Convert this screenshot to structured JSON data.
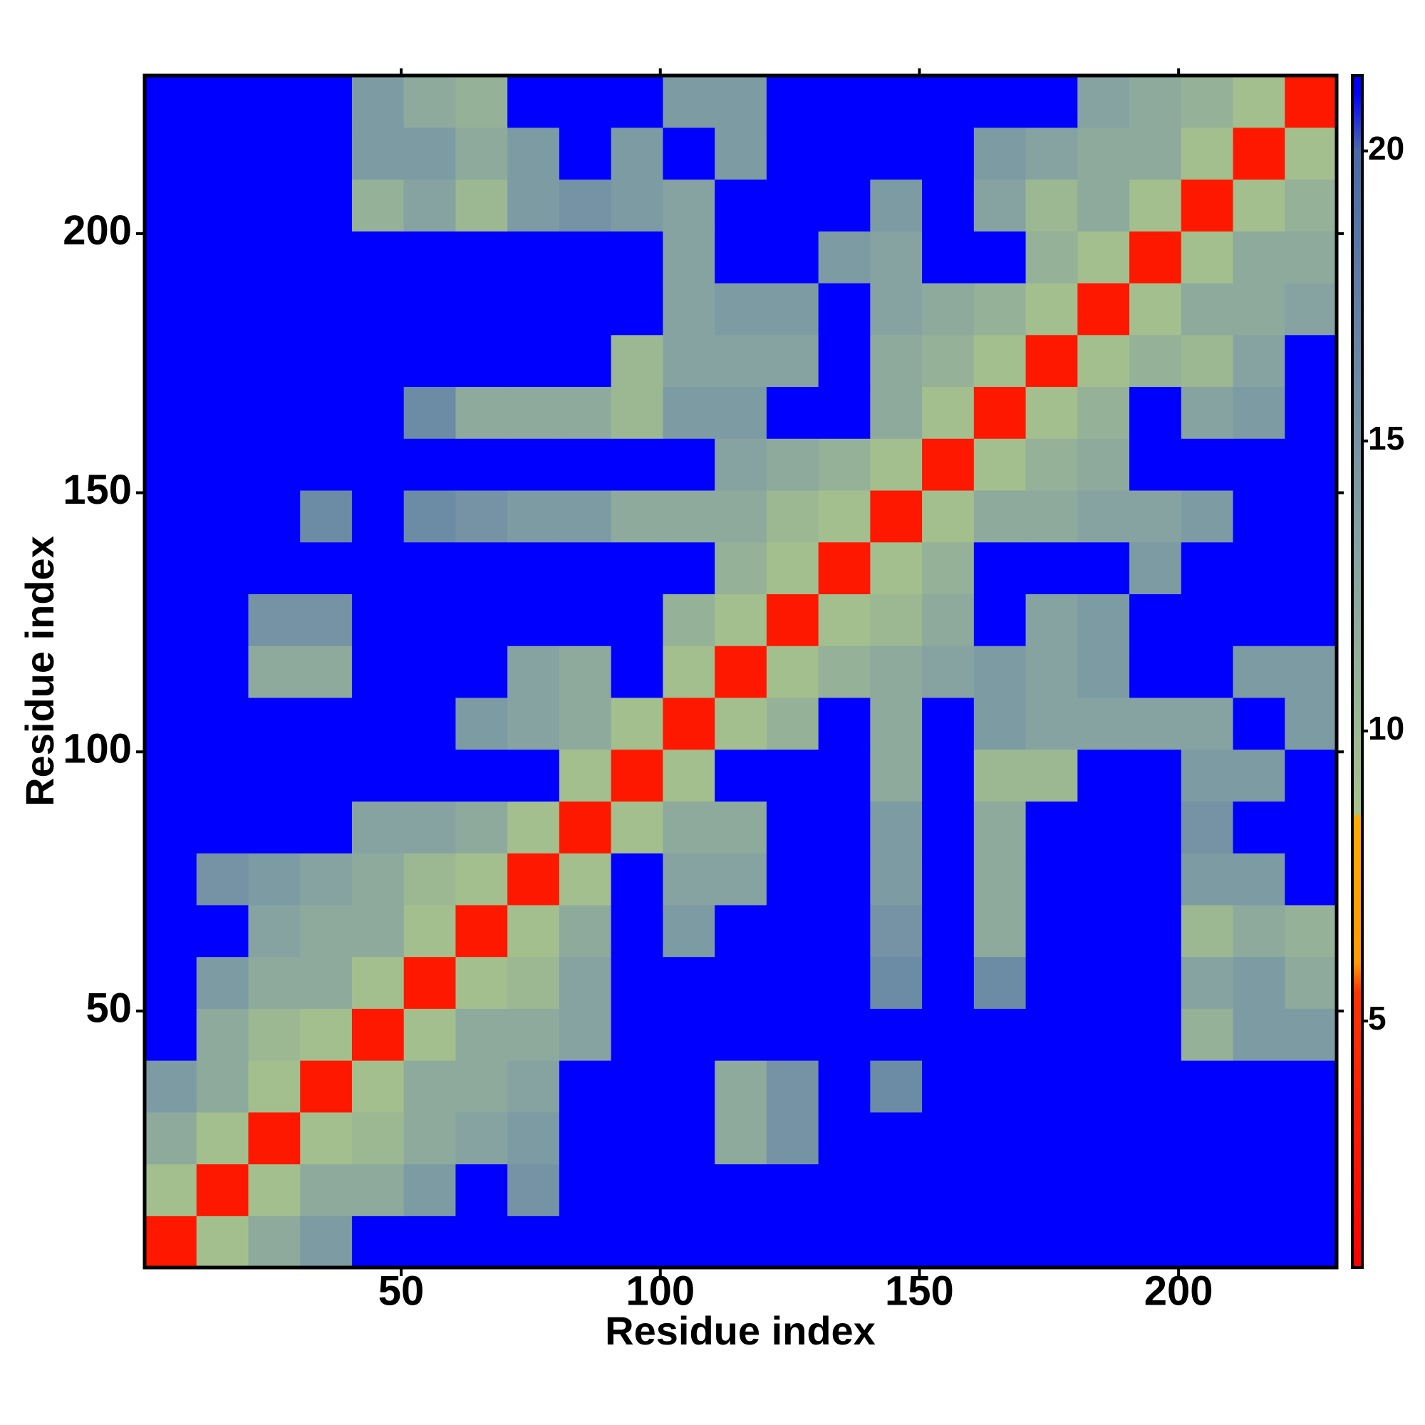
{
  "chart_data": {
    "type": "heatmap",
    "x_label": "Residue index",
    "y_label": "Residue index",
    "xbins": [
      0.5,
      10.5,
      20.5,
      30.5,
      40.5,
      50.5,
      60.5,
      70.5,
      80.5,
      90.5,
      100.5,
      110.5,
      120.5,
      130.5,
      140.5,
      150.5,
      160.5,
      170.5,
      180.5,
      190.5,
      200.5,
      210.5,
      220.5,
      230.5
    ],
    "ybins": [
      0.5,
      10.5,
      20.5,
      30.5,
      40.5,
      50.5,
      60.5,
      70.5,
      80.5,
      90.5,
      100.5,
      110.5,
      120.5,
      130.5,
      140.5,
      150.5,
      160.5,
      170.5,
      180.5,
      190.5,
      200.5,
      210.5,
      220.5,
      230.5
    ],
    "xlim": [
      0.5,
      230.5
    ],
    "ylim": [
      0.5,
      230.5
    ],
    "xticks": [
      50,
      100,
      150,
      200
    ],
    "yticks": [
      50,
      100,
      150,
      200
    ],
    "clim": [
      0.75,
      21.3
    ],
    "cticks": [
      5,
      10,
      15,
      20
    ],
    "colorscale": [
      [
        0.75,
        "#ff0000"
      ],
      [
        5.5,
        "#ff3300"
      ],
      [
        6,
        "#ff9900"
      ],
      [
        8.5,
        "#ffaa00"
      ],
      [
        8.6,
        "#a6c28c"
      ],
      [
        13,
        "#86a3a2"
      ],
      [
        20,
        "#4a6aa8"
      ],
      [
        21,
        "#0000ff"
      ]
    ],
    "values": [
      [
        3,
        9,
        12,
        14,
        21,
        21,
        21,
        21,
        21,
        21,
        21,
        21,
        21,
        21,
        21,
        21,
        21,
        21,
        21,
        21,
        21,
        21,
        21
      ],
      [
        9,
        3,
        9,
        12,
        12,
        14,
        21,
        15,
        21,
        21,
        21,
        21,
        21,
        21,
        21,
        21,
        21,
        21,
        21,
        21,
        21,
        21,
        21
      ],
      [
        12,
        9,
        3,
        9,
        10,
        12,
        13,
        14,
        21,
        21,
        21,
        12,
        15,
        21,
        21,
        21,
        21,
        21,
        21,
        21,
        21,
        21,
        21
      ],
      [
        14,
        12,
        9,
        3,
        9,
        12,
        12,
        13,
        21,
        21,
        21,
        12,
        15,
        21,
        16,
        21,
        21,
        21,
        21,
        21,
        21,
        21,
        21
      ],
      [
        21,
        12,
        10,
        9,
        3,
        9,
        12,
        12,
        13,
        21,
        21,
        21,
        21,
        21,
        21,
        21,
        21,
        21,
        21,
        21,
        11,
        14,
        14
      ],
      [
        21,
        14,
        12,
        12,
        9,
        3,
        9,
        10,
        13,
        21,
        21,
        21,
        21,
        21,
        16,
        21,
        16,
        21,
        21,
        21,
        13,
        14,
        12
      ],
      [
        21,
        21,
        13,
        12,
        12,
        9,
        3,
        9,
        12,
        21,
        14,
        21,
        21,
        21,
        15,
        21,
        12,
        21,
        21,
        21,
        10,
        12,
        11
      ],
      [
        21,
        15,
        14,
        13,
        12,
        10,
        9,
        3,
        9,
        21,
        13,
        13,
        21,
        21,
        14,
        21,
        12,
        21,
        21,
        21,
        14,
        14,
        21
      ],
      [
        21,
        21,
        21,
        21,
        13,
        13,
        12,
        9,
        3,
        9,
        12,
        12,
        21,
        21,
        14,
        21,
        12,
        21,
        21,
        21,
        15,
        21,
        21
      ],
      [
        21,
        21,
        21,
        21,
        21,
        21,
        21,
        21,
        9,
        3,
        9,
        21,
        21,
        21,
        12,
        21,
        10,
        10,
        21,
        21,
        14,
        14,
        21
      ],
      [
        21,
        21,
        21,
        21,
        21,
        21,
        14,
        13,
        12,
        9,
        3,
        9,
        11,
        21,
        12,
        21,
        14,
        13,
        13,
        13,
        13,
        21,
        14
      ],
      [
        21,
        21,
        12,
        12,
        21,
        21,
        21,
        13,
        12,
        21,
        9,
        3,
        9,
        11,
        12,
        13,
        14,
        13,
        14,
        21,
        21,
        14,
        14
      ],
      [
        21,
        21,
        15,
        15,
        21,
        21,
        21,
        21,
        21,
        21,
        11,
        9,
        3,
        9,
        10,
        12,
        21,
        13,
        14,
        21,
        21,
        21,
        21
      ],
      [
        21,
        21,
        21,
        21,
        21,
        21,
        21,
        21,
        21,
        21,
        21,
        11,
        9,
        3,
        9,
        11,
        21,
        21,
        21,
        14,
        21,
        21,
        21
      ],
      [
        21,
        21,
        21,
        16,
        21,
        16,
        15,
        14,
        14,
        12,
        12,
        12,
        10,
        9,
        3,
        9,
        12,
        12,
        13,
        13,
        14,
        21,
        21
      ],
      [
        21,
        21,
        21,
        21,
        21,
        21,
        21,
        21,
        21,
        21,
        21,
        13,
        12,
        11,
        9,
        3,
        9,
        11,
        12,
        21,
        21,
        21,
        21
      ],
      [
        21,
        21,
        21,
        21,
        21,
        16,
        12,
        12,
        12,
        10,
        14,
        14,
        21,
        21,
        12,
        9,
        3,
        9,
        11,
        21,
        13,
        14,
        21
      ],
      [
        21,
        21,
        21,
        21,
        21,
        21,
        21,
        21,
        21,
        10,
        13,
        13,
        13,
        21,
        12,
        11,
        9,
        3,
        9,
        11,
        10,
        13,
        21
      ],
      [
        21,
        21,
        21,
        21,
        21,
        21,
        21,
        21,
        21,
        21,
        13,
        14,
        14,
        21,
        13,
        12,
        11,
        9,
        3,
        9,
        12,
        12,
        13
      ],
      [
        21,
        21,
        21,
        21,
        21,
        21,
        21,
        21,
        21,
        21,
        13,
        21,
        21,
        14,
        13,
        21,
        21,
        11,
        9,
        3,
        9,
        12,
        12
      ],
      [
        21,
        21,
        21,
        21,
        11,
        13,
        10,
        14,
        15,
        14,
        13,
        21,
        21,
        21,
        14,
        21,
        13,
        10,
        12,
        9,
        3,
        9,
        11
      ],
      [
        21,
        21,
        21,
        21,
        14,
        14,
        12,
        14,
        21,
        14,
        21,
        14,
        21,
        21,
        21,
        21,
        14,
        13,
        12,
        12,
        9,
        3,
        9
      ],
      [
        21,
        21,
        21,
        21,
        14,
        12,
        11,
        21,
        21,
        21,
        14,
        14,
        21,
        21,
        21,
        21,
        21,
        21,
        13,
        12,
        11,
        9,
        3
      ]
    ]
  }
}
